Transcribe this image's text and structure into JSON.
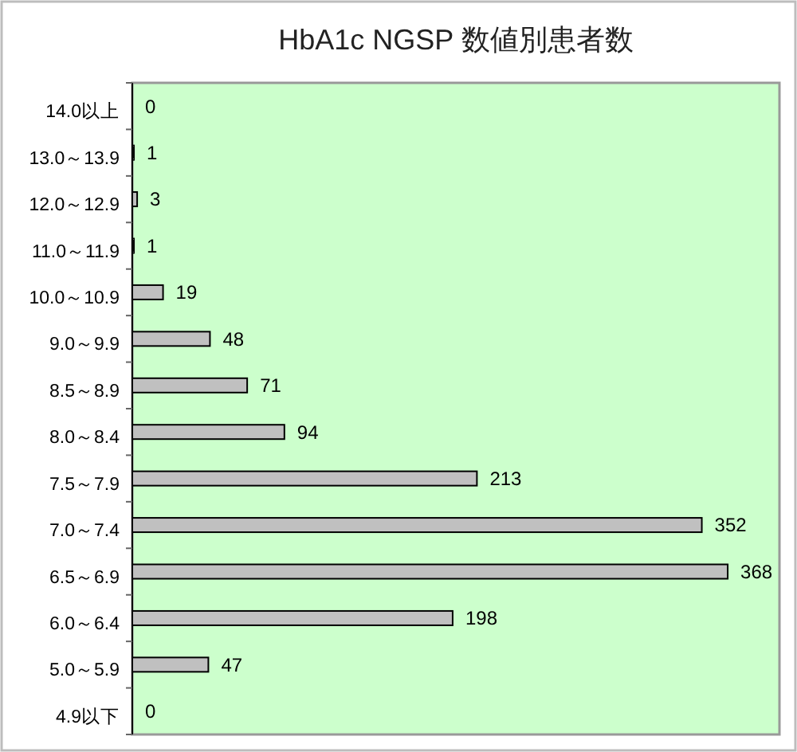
{
  "chart_data": {
    "type": "bar",
    "orientation": "horizontal",
    "title": "HbA1c NGSP 数値別患者数",
    "categories": [
      "14.0以上",
      "13.0～13.9",
      "12.0～12.9",
      "11.0～11.9",
      "10.0～10.9",
      "9.0～9.9",
      "8.5～8.9",
      "8.0～8.4",
      "7.5～7.9",
      "7.0～7.4",
      "6.5～6.9",
      "6.0～6.4",
      "5.0～5.9",
      "4.9以下"
    ],
    "values": [
      0,
      1,
      3,
      1,
      19,
      48,
      71,
      94,
      213,
      352,
      368,
      198,
      47,
      0
    ],
    "color": "#c0c0c0",
    "xlim": [
      0,
      400
    ],
    "tick_labels": "y",
    "data_labels": true
  }
}
